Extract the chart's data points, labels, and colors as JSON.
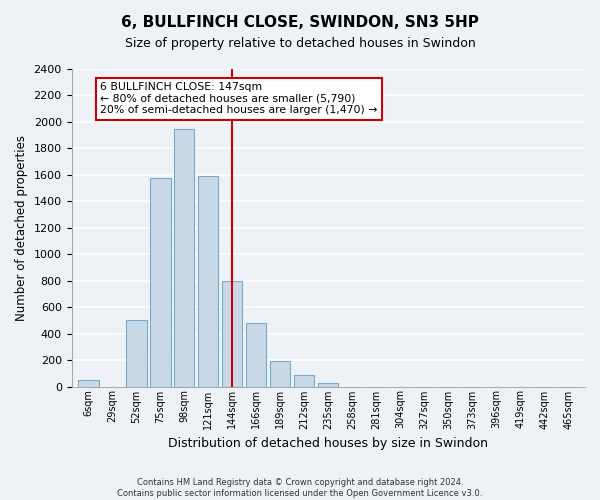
{
  "title": "6, BULLFINCH CLOSE, SWINDON, SN3 5HP",
  "subtitle": "Size of property relative to detached houses in Swindon",
  "xlabel": "Distribution of detached houses by size in Swindon",
  "ylabel": "Number of detached properties",
  "bar_labels": [
    "6sqm",
    "29sqm",
    "52sqm",
    "75sqm",
    "98sqm",
    "121sqm",
    "144sqm",
    "166sqm",
    "189sqm",
    "212sqm",
    "235sqm",
    "258sqm",
    "281sqm",
    "304sqm",
    "327sqm",
    "350sqm",
    "373sqm",
    "396sqm",
    "419sqm",
    "442sqm",
    "465sqm"
  ],
  "bar_values": [
    50,
    0,
    500,
    1575,
    1950,
    1590,
    800,
    480,
    190,
    90,
    30,
    0,
    0,
    0,
    0,
    0,
    0,
    0,
    0,
    0,
    0
  ],
  "bar_color": "#c9d9e8",
  "bar_edge_color": "#7aaac8",
  "vline_x": 6,
  "vline_color": "#cc0000",
  "annotation_title": "6 BULLFINCH CLOSE: 147sqm",
  "annotation_line1": "← 80% of detached houses are smaller (5,790)",
  "annotation_line2": "20% of semi-detached houses are larger (1,470) →",
  "annotation_box_color": "#ffffff",
  "annotation_box_edge": "#cc0000",
  "ylim": [
    0,
    2400
  ],
  "yticks": [
    0,
    200,
    400,
    600,
    800,
    1000,
    1200,
    1400,
    1600,
    1800,
    2000,
    2200,
    2400
  ],
  "footer_line1": "Contains HM Land Registry data © Crown copyright and database right 2024.",
  "footer_line2": "Contains public sector information licensed under the Open Government Licence v3.0.",
  "background_color": "#eef2f7",
  "grid_color": "#ffffff"
}
